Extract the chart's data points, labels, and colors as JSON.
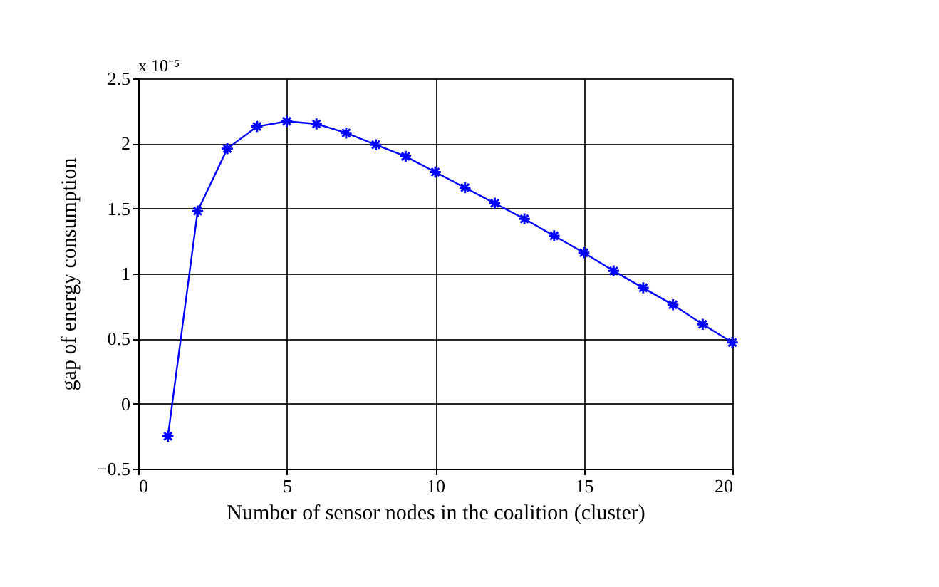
{
  "chart_data": {
    "type": "line",
    "xlabel": "Number of sensor nodes in the coalition (cluster)",
    "ylabel": "gap of energy consumption",
    "annotations": [
      "x 10⁻⁵"
    ],
    "x": [
      1,
      2,
      3,
      4,
      5,
      6,
      7,
      8,
      9,
      10,
      11,
      12,
      13,
      14,
      15,
      16,
      17,
      18,
      19,
      20
    ],
    "series": [
      {
        "color": "#0000ff",
        "values": [
          -0.25,
          1.48,
          1.96,
          2.13,
          2.17,
          2.15,
          2.08,
          1.99,
          1.9,
          1.78,
          1.66,
          1.54,
          1.42,
          1.29,
          1.16,
          1.02,
          0.89,
          0.76,
          0.61,
          0.47
        ]
      }
    ],
    "xlim": [
      0,
      20
    ],
    "xticks": [
      0,
      5,
      10,
      15,
      20
    ],
    "ylim": [
      -0.5,
      2.5
    ],
    "yticks": [
      -0.5,
      0,
      0.5,
      1,
      1.5,
      2,
      2.5
    ],
    "grid": true,
    "marker": "cross",
    "line_style": "solid"
  }
}
